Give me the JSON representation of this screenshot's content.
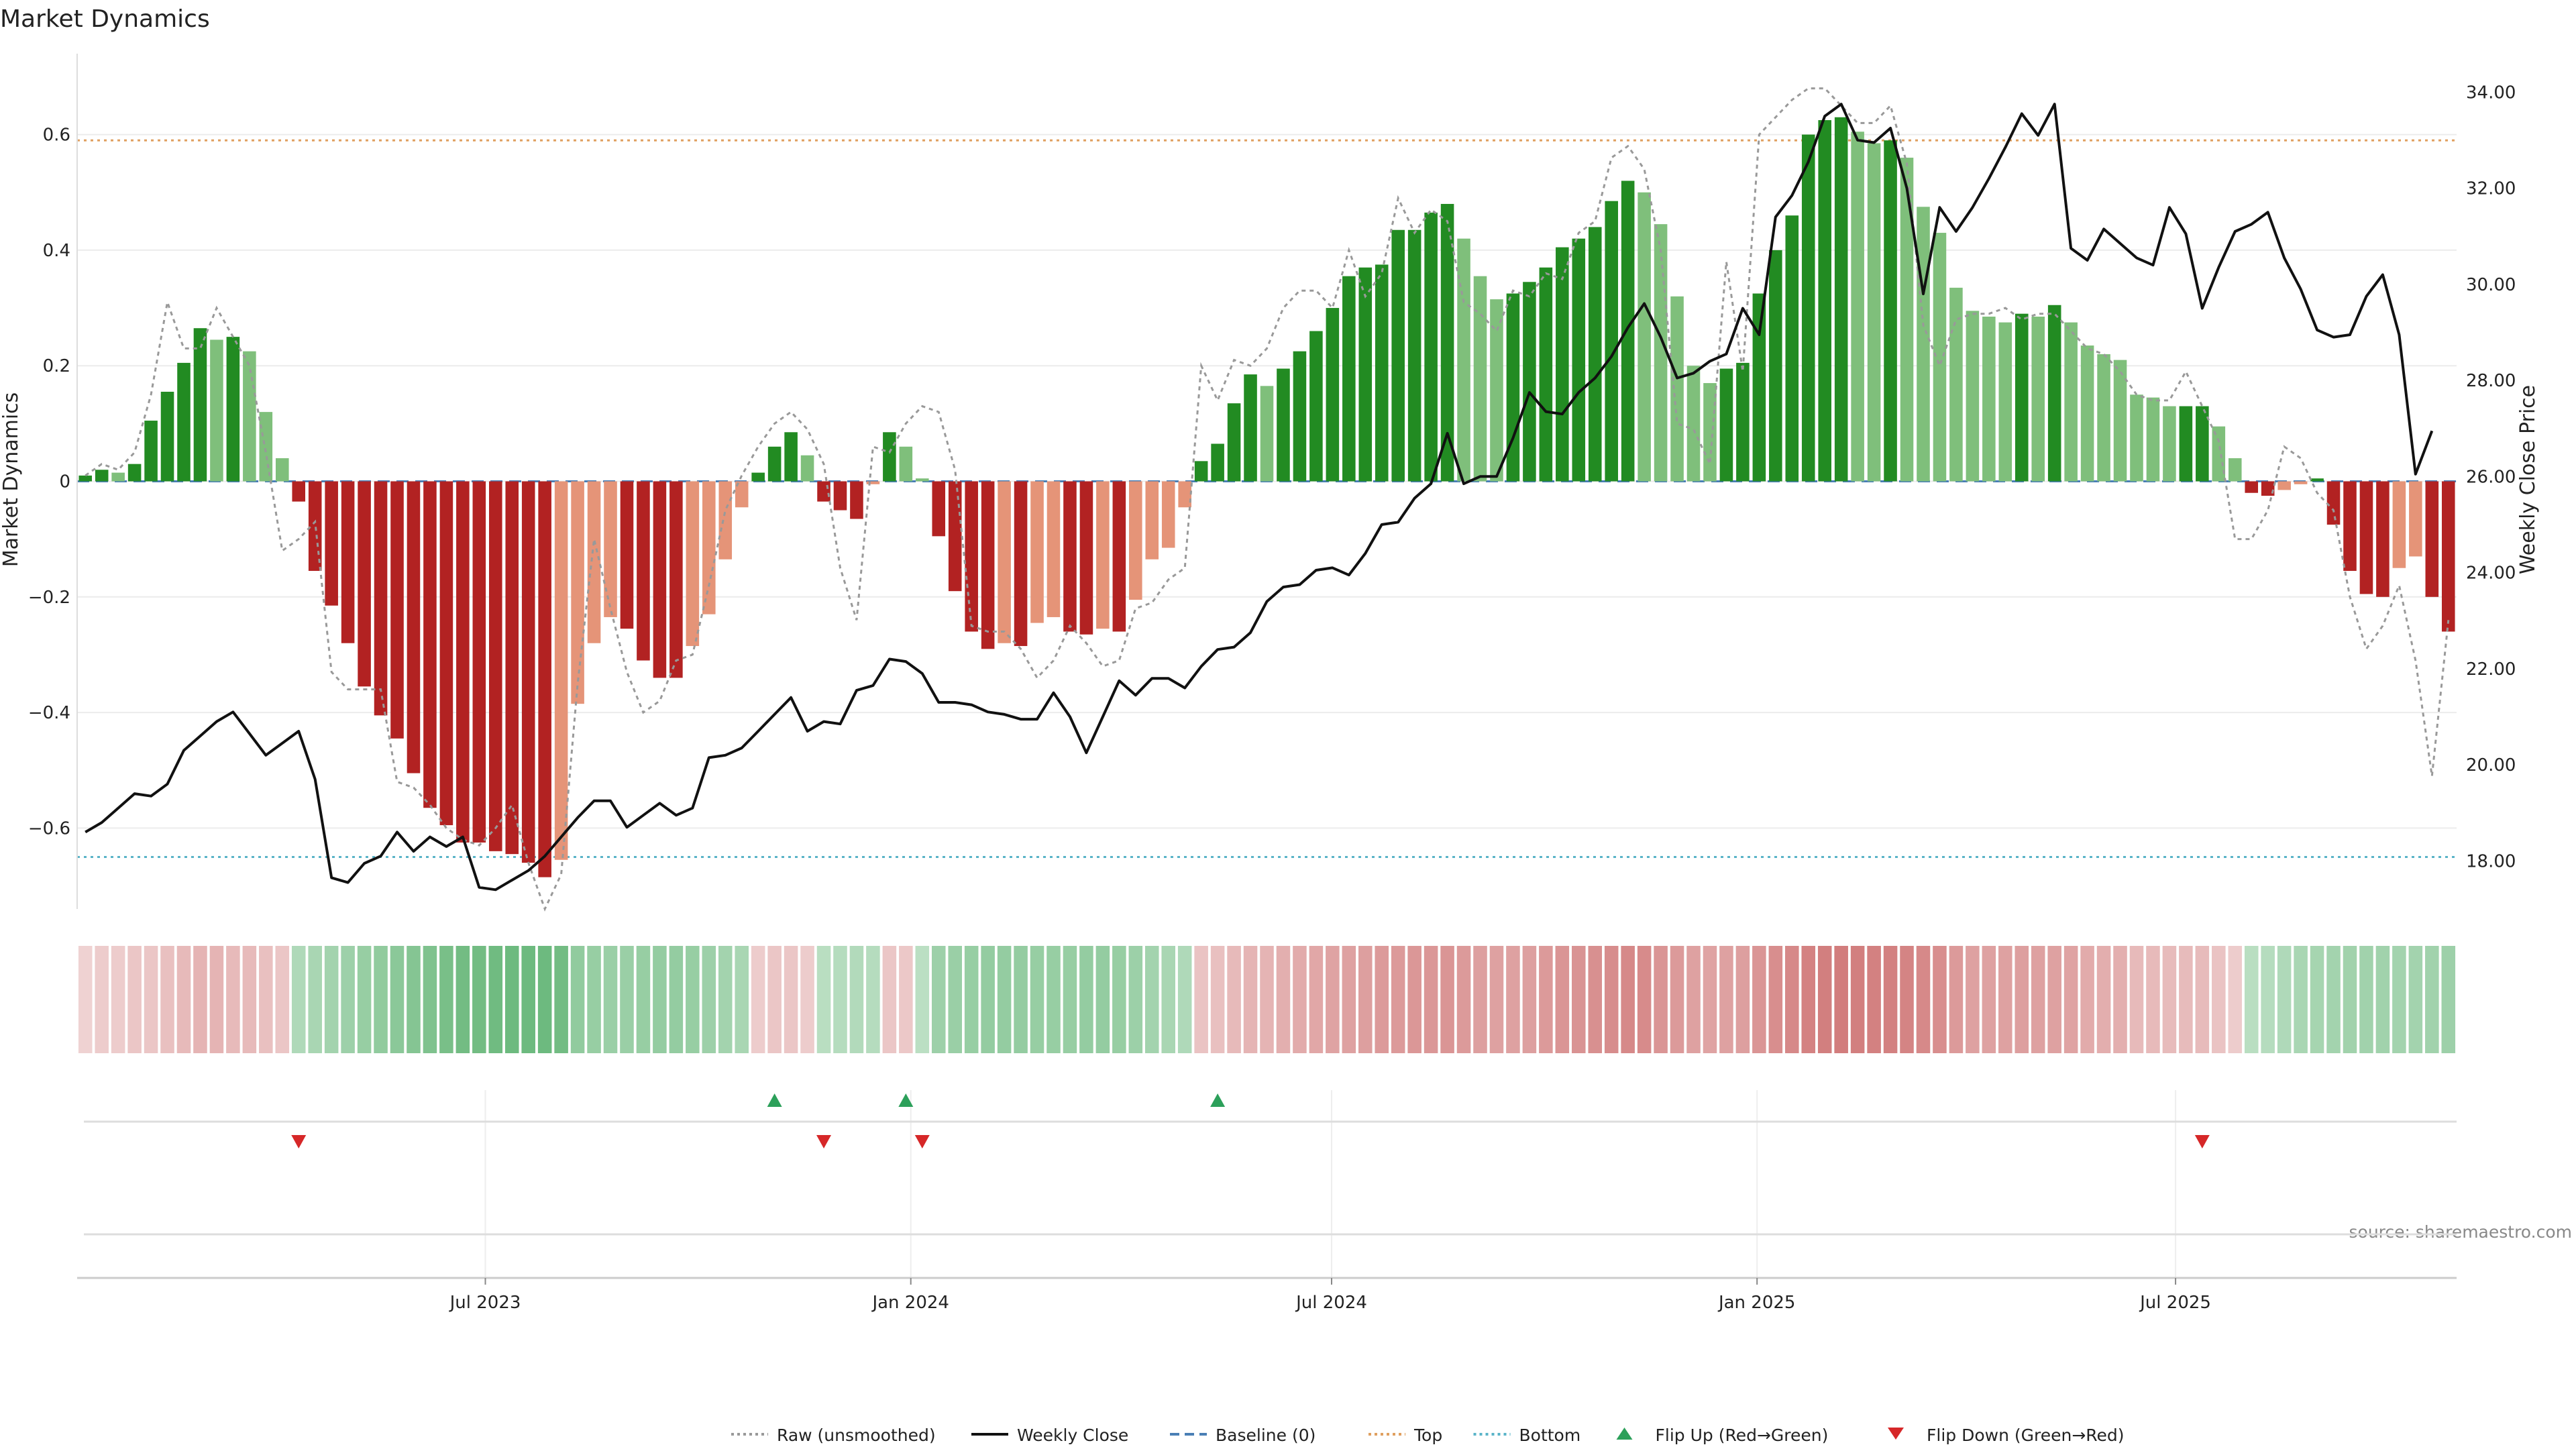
{
  "chart_data": {
    "type": "bar",
    "title": "Market Dynamics",
    "ylabel": "Market Dynamics",
    "y2label": "Weekly Close Price",
    "source": "source: sharemaestro.com",
    "ylim": [
      -0.74,
      0.74
    ],
    "y2lim": [
      17.0,
      34.8
    ],
    "yticks": [
      -0.6,
      -0.4,
      -0.2,
      0,
      0.2,
      0.4,
      0.6
    ],
    "ytick_labels": [
      "−0.6",
      "−0.4",
      "−0.2",
      "0",
      "0.2",
      "0.4",
      "0.6"
    ],
    "y2ticks": [
      18,
      20,
      22,
      24,
      26,
      28,
      30,
      32,
      34
    ],
    "y2tick_labels": [
      "18.00",
      "20.00",
      "22.00",
      "24.00",
      "26.00",
      "28.00",
      "30.00",
      "32.00",
      "34.00"
    ],
    "x_start": "2023-01-09",
    "x_end": "2025-10-27",
    "xticks": [
      {
        "date": "2023-07-01",
        "label": "Jul 2023"
      },
      {
        "date": "2024-01-01",
        "label": "Jan 2024"
      },
      {
        "date": "2024-07-01",
        "label": "Jul 2024"
      },
      {
        "date": "2025-01-01",
        "label": "Jan 2025"
      },
      {
        "date": "2025-07-01",
        "label": "Jul 2025"
      }
    ],
    "top": 0.59,
    "bottom": -0.65,
    "baseline": 0,
    "colors": {
      "strong_up": "#228B22",
      "weak_up": "#7fbf7b",
      "strong_down": "#b22222",
      "weak_down": "#e59478",
      "raw": "#999999",
      "close": "#111111",
      "baseline": "#4a7fb5",
      "top": "#e0a060",
      "bottom": "#5ab4c8",
      "flip_up": "#2ca05a",
      "flip_down": "#d62728"
    },
    "series": [
      {
        "name": "Market Dynamics",
        "kind": "bar",
        "values": [
          0.01,
          0.02,
          0.015,
          0.03,
          0.105,
          0.155,
          0.205,
          0.265,
          0.245,
          0.25,
          0.225,
          0.12,
          0.04,
          -0.035,
          -0.155,
          -0.215,
          -0.28,
          -0.355,
          -0.405,
          -0.445,
          -0.505,
          -0.565,
          -0.595,
          -0.625,
          -0.625,
          -0.64,
          -0.645,
          -0.66,
          -0.685,
          -0.655,
          -0.385,
          -0.28,
          -0.235,
          -0.255,
          -0.31,
          -0.34,
          -0.34,
          -0.285,
          -0.23,
          -0.135,
          -0.045,
          0.015,
          0.06,
          0.085,
          0.045,
          -0.035,
          -0.05,
          -0.065,
          -0.005,
          0.085,
          0.06,
          0.005,
          -0.095,
          -0.19,
          -0.26,
          -0.29,
          -0.28,
          -0.285,
          -0.245,
          -0.235,
          -0.26,
          -0.265,
          -0.255,
          -0.26,
          -0.205,
          -0.135,
          -0.115,
          -0.045,
          0.035,
          0.065,
          0.135,
          0.185,
          0.165,
          0.195,
          0.225,
          0.26,
          0.3,
          0.355,
          0.37,
          0.375,
          0.435,
          0.435,
          0.465,
          0.48,
          0.42,
          0.355,
          0.315,
          0.325,
          0.345,
          0.37,
          0.405,
          0.42,
          0.44,
          0.485,
          0.52,
          0.5,
          0.445,
          0.32,
          0.2,
          0.17,
          0.195,
          0.205,
          0.325,
          0.4,
          0.46,
          0.6,
          0.625,
          0.63,
          0.605,
          0.585,
          0.59,
          0.56,
          0.475,
          0.43,
          0.335,
          0.295,
          0.285,
          0.275,
          0.29,
          0.285,
          0.305,
          0.275,
          0.235,
          0.22,
          0.21,
          0.15,
          0.145,
          0.13,
          0.13,
          0.13,
          0.095,
          0.04,
          -0.02,
          -0.025,
          -0.015,
          -0.005,
          0.005,
          -0.075,
          -0.155,
          -0.195,
          -0.2,
          -0.15,
          -0.13,
          -0.2,
          -0.26
        ]
      },
      {
        "name": "Raw (unsmoothed)",
        "kind": "line",
        "values": [
          0.01,
          0.03,
          0.02,
          0.05,
          0.15,
          0.31,
          0.23,
          0.23,
          0.3,
          0.25,
          0.2,
          0.05,
          -0.12,
          -0.1,
          -0.07,
          -0.33,
          -0.36,
          -0.36,
          -0.36,
          -0.52,
          -0.53,
          -0.56,
          -0.6,
          -0.62,
          -0.63,
          -0.6,
          -0.56,
          -0.66,
          -0.74,
          -0.68,
          -0.35,
          -0.1,
          -0.22,
          -0.33,
          -0.4,
          -0.38,
          -0.31,
          -0.3,
          -0.18,
          -0.05,
          0.01,
          0.06,
          0.1,
          0.12,
          0.09,
          0.03,
          -0.15,
          -0.24,
          0.06,
          0.05,
          0.1,
          0.13,
          0.12,
          0.02,
          -0.25,
          -0.26,
          -0.26,
          -0.29,
          -0.34,
          -0.31,
          -0.25,
          -0.28,
          -0.32,
          -0.31,
          -0.22,
          -0.21,
          -0.17,
          -0.15,
          0.2,
          0.14,
          0.21,
          0.2,
          0.23,
          0.3,
          0.33,
          0.33,
          0.3,
          0.4,
          0.32,
          0.36,
          0.49,
          0.43,
          0.47,
          0.45,
          0.31,
          0.29,
          0.26,
          0.33,
          0.32,
          0.36,
          0.35,
          0.43,
          0.45,
          0.56,
          0.58,
          0.54,
          0.4,
          0.1,
          0.09,
          0.03,
          0.38,
          0.19,
          0.6,
          0.63,
          0.66,
          0.68,
          0.68,
          0.65,
          0.62,
          0.62,
          0.65,
          0.55,
          0.27,
          0.2,
          0.28,
          0.29,
          0.29,
          0.3,
          0.28,
          0.29,
          0.29,
          0.26,
          0.23,
          0.22,
          0.19,
          0.15,
          0.14,
          0.14,
          0.19,
          0.13,
          0.07,
          -0.1,
          -0.1,
          -0.05,
          0.06,
          0.04,
          -0.02,
          -0.05,
          -0.2,
          -0.29,
          -0.25,
          -0.18,
          -0.31,
          -0.51,
          -0.24
        ]
      },
      {
        "name": "Weekly Close",
        "kind": "line",
        "axis": "right",
        "values": [
          18.6,
          18.8,
          19.1,
          19.4,
          19.35,
          19.6,
          20.3,
          20.6,
          20.9,
          21.1,
          20.65,
          20.2,
          20.45,
          20.7,
          19.7,
          17.65,
          17.55,
          17.95,
          18.1,
          18.6,
          18.2,
          18.5,
          18.3,
          18.5,
          17.45,
          17.4,
          17.6,
          17.8,
          18.1,
          18.5,
          18.9,
          19.25,
          19.25,
          18.7,
          18.95,
          19.2,
          18.95,
          19.1,
          20.15,
          20.2,
          20.35,
          20.7,
          21.05,
          21.4,
          20.7,
          20.9,
          20.85,
          21.55,
          21.65,
          22.2,
          22.15,
          21.9,
          21.3,
          21.3,
          21.25,
          21.1,
          21.05,
          20.95,
          20.95,
          21.5,
          21.0,
          20.25,
          21.0,
          21.75,
          21.45,
          21.8,
          21.8,
          21.6,
          22.05,
          22.4,
          22.45,
          22.75,
          23.4,
          23.7,
          23.75,
          24.05,
          24.1,
          23.95,
          24.4,
          25.0,
          25.05,
          25.55,
          25.85,
          26.9,
          25.85,
          26.0,
          26.0,
          26.8,
          27.75,
          27.35,
          27.3,
          27.75,
          28.05,
          28.5,
          29.1,
          29.6,
          28.9,
          28.05,
          28.15,
          28.4,
          28.55,
          29.5,
          28.95,
          31.4,
          31.85,
          32.55,
          33.5,
          33.75,
          33.0,
          32.95,
          33.25,
          32.0,
          29.8,
          31.6,
          31.1,
          31.6,
          32.2,
          32.85,
          33.55,
          33.1,
          33.75,
          30.75,
          30.5,
          31.15,
          30.85,
          30.55,
          30.4,
          31.6,
          31.05,
          29.5,
          30.35,
          31.1,
          31.25,
          31.5,
          30.55,
          29.9,
          29.05,
          28.9,
          28.95,
          29.75,
          30.2,
          28.95,
          26.05,
          26.95
        ]
      }
    ],
    "weekly_strength": [
      -0.1,
      -0.15,
      -0.15,
      -0.2,
      -0.2,
      -0.25,
      -0.3,
      -0.35,
      -0.35,
      -0.3,
      -0.3,
      -0.25,
      -0.2,
      0.2,
      0.25,
      0.3,
      0.35,
      0.4,
      0.45,
      0.5,
      0.55,
      0.6,
      0.65,
      0.7,
      0.7,
      0.72,
      0.74,
      0.74,
      0.74,
      0.7,
      0.45,
      0.4,
      0.38,
      0.38,
      0.4,
      0.42,
      0.42,
      0.4,
      0.35,
      0.3,
      0.25,
      -0.15,
      -0.2,
      -0.2,
      -0.15,
      0.12,
      0.15,
      0.18,
      0.15,
      -0.2,
      -0.18,
      0.1,
      0.35,
      0.38,
      0.4,
      0.42,
      0.42,
      0.42,
      0.4,
      0.4,
      0.4,
      0.42,
      0.42,
      0.4,
      0.36,
      0.3,
      0.25,
      0.2,
      -0.22,
      -0.25,
      -0.3,
      -0.35,
      -0.35,
      -0.38,
      -0.42,
      -0.45,
      -0.48,
      -0.5,
      -0.52,
      -0.55,
      -0.56,
      -0.58,
      -0.58,
      -0.6,
      -0.55,
      -0.52,
      -0.5,
      -0.5,
      -0.52,
      -0.55,
      -0.6,
      -0.62,
      -0.64,
      -0.66,
      -0.7,
      -0.68,
      -0.6,
      -0.55,
      -0.5,
      -0.48,
      -0.5,
      -0.52,
      -0.6,
      -0.65,
      -0.7,
      -0.75,
      -0.78,
      -0.8,
      -0.78,
      -0.76,
      -0.76,
      -0.74,
      -0.7,
      -0.65,
      -0.55,
      -0.5,
      -0.5,
      -0.5,
      -0.52,
      -0.5,
      -0.5,
      -0.48,
      -0.42,
      -0.4,
      -0.38,
      -0.3,
      -0.3,
      -0.28,
      -0.28,
      -0.28,
      -0.22,
      -0.15,
      0.12,
      0.15,
      0.2,
      0.25,
      0.28,
      0.3,
      0.32,
      0.32,
      0.32,
      0.3,
      0.3,
      0.32,
      0.35
    ],
    "flip_up_weeks": [
      42,
      50,
      69
    ],
    "flip_down_weeks": [
      13,
      45,
      51,
      129
    ],
    "legend": [
      {
        "label": "Raw (unsmoothed)",
        "style": "dotted",
        "color": "#999999"
      },
      {
        "label": "Weekly Close",
        "style": "solid",
        "color": "#111111"
      },
      {
        "label": "Baseline (0)",
        "style": "dashed",
        "color": "#4a7fb5"
      },
      {
        "label": "Top",
        "style": "dotted",
        "color": "#e0a060"
      },
      {
        "label": "Bottom",
        "style": "dotted",
        "color": "#5ab4c8"
      },
      {
        "label": "Flip Up (Red→Green)",
        "style": "tri-up",
        "color": "#2ca05a"
      },
      {
        "label": "Flip Down (Green→Red)",
        "style": "tri-down",
        "color": "#d62728"
      }
    ]
  }
}
